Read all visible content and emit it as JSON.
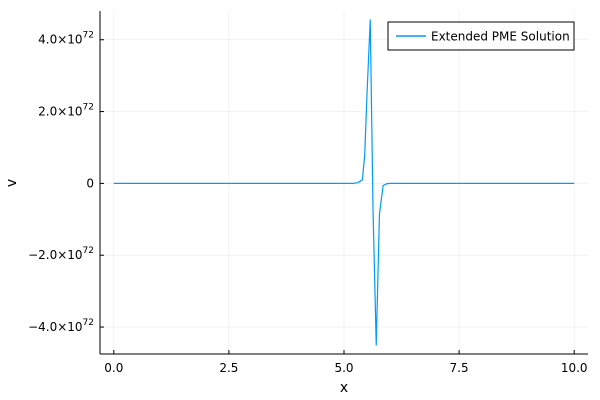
{
  "chart_data": {
    "type": "line",
    "title": "",
    "xlabel": "x",
    "ylabel": "v",
    "xlim": [
      -0.3,
      10.3
    ],
    "ylim": [
      -4.75e+72,
      4.8e+72
    ],
    "grid": true,
    "legend_position": "top-right",
    "x_ticks": [
      {
        "value": 0.0,
        "label": "0.0"
      },
      {
        "value": 2.5,
        "label": "2.5"
      },
      {
        "value": 5.0,
        "label": "5.0"
      },
      {
        "value": 7.5,
        "label": "7.5"
      },
      {
        "value": 10.0,
        "label": "10.0"
      }
    ],
    "y_ticks": [
      {
        "value": -4e+72,
        "mantissa": "−4.0×10",
        "exponent": "72"
      },
      {
        "value": -2e+72,
        "mantissa": "−2.0×10",
        "exponent": "72"
      },
      {
        "value": 0,
        "mantissa": "0",
        "exponent": ""
      },
      {
        "value": 2e+72,
        "mantissa": "2.0×10",
        "exponent": "72"
      },
      {
        "value": 4e+72,
        "mantissa": "4.0×10",
        "exponent": "72"
      }
    ],
    "series": [
      {
        "name": "Extended PME Solution",
        "color": "#009AFA",
        "x": [
          0.0,
          1.0,
          2.0,
          3.0,
          4.0,
          5.0,
          5.2,
          5.3,
          5.4,
          5.45,
          5.5,
          5.57,
          5.63,
          5.7,
          5.77,
          5.85,
          5.93,
          6.0,
          6.5,
          7.0,
          8.0,
          9.0,
          10.0
        ],
        "y": [
          0,
          0,
          0,
          0,
          0,
          0,
          0,
          2e+70,
          1e+71,
          8e+71,
          2.5e+72,
          4.55e+72,
          -7e+71,
          -4.5e+72,
          -8.5e+71,
          -6e+70,
          -1e+70,
          0,
          0,
          0,
          0,
          0,
          0
        ]
      }
    ]
  }
}
